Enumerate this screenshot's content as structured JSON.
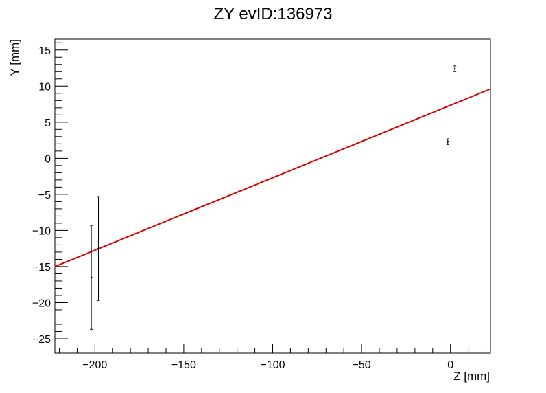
{
  "chart_data": {
    "type": "scatter",
    "title": "ZY evID:136973",
    "xlabel": "Z [mm]",
    "ylabel": "Y [mm]",
    "xlim": [
      -222.5,
      22.5
    ],
    "ylim": [
      -27.0,
      16.5
    ],
    "x_ticks": [
      -200,
      -150,
      -100,
      -50,
      0
    ],
    "y_ticks": [
      -25,
      -20,
      -15,
      -10,
      -5,
      0,
      5,
      10,
      15
    ],
    "x_tick_labels": [
      "−200",
      "−150",
      "−100",
      "−50",
      "0"
    ],
    "y_tick_labels": [
      "−25",
      "−20",
      "−15",
      "−10",
      "−5",
      "0",
      "5",
      "10",
      "15"
    ],
    "grid": false,
    "series": [
      {
        "kind": "points_with_y_errors",
        "color": "#000000",
        "points": [
          {
            "x": -202.0,
            "y": -16.5,
            "yerr": 7.2
          },
          {
            "x": -198.0,
            "y": -12.5,
            "yerr": 7.2
          },
          {
            "x": -1.5,
            "y": 2.3,
            "yerr": 0.4
          },
          {
            "x": 2.5,
            "y": 12.4,
            "yerr": 0.4
          }
        ]
      },
      {
        "kind": "fit_line",
        "color": "#dd0000",
        "x": [
          -222.5,
          22.5
        ],
        "y": [
          -15.0,
          9.6
        ]
      }
    ]
  }
}
